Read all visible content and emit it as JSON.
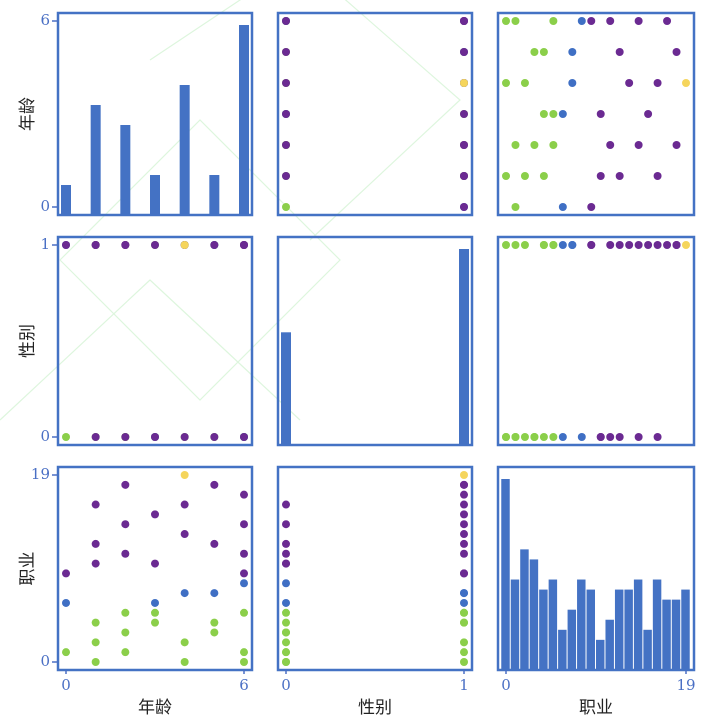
{
  "chart_data": {
    "type": "scatter_matrix",
    "variables": [
      {
        "name": "年龄",
        "lim": [
          0,
          6
        ],
        "ticks": [
          0,
          6
        ]
      },
      {
        "name": "性别",
        "lim": [
          0,
          1
        ],
        "ticks": [
          0,
          1
        ]
      },
      {
        "name": "职业",
        "lim": [
          0,
          19
        ],
        "ticks": [
          0,
          19
        ]
      }
    ],
    "series": [
      {
        "color": "#8bcf4a",
        "values": [
          [
            0,
            1,
            1,
            2,
            2,
            3,
            3,
            4,
            4,
            5,
            5,
            6,
            6,
            6,
            1,
            2
          ],
          [
            0,
            0,
            1,
            0,
            1,
            0,
            1,
            0,
            1,
            0,
            1,
            0,
            1,
            0,
            1,
            0
          ],
          [
            1,
            0,
            2,
            3,
            1,
            4,
            5,
            2,
            0,
            3,
            4,
            1,
            5,
            0,
            4,
            5
          ]
        ]
      },
      {
        "color": "#3f6fc4",
        "values": [
          [
            3,
            5,
            6,
            0,
            4
          ],
          [
            0,
            1,
            0,
            1,
            1
          ],
          [
            6,
            7,
            8,
            6,
            7
          ]
        ]
      },
      {
        "color": "#6b2a92",
        "values": [
          [
            0,
            1,
            1,
            2,
            2,
            3,
            4,
            4,
            5,
            6,
            6,
            6,
            1,
            3,
            5,
            6,
            2
          ],
          [
            1,
            0,
            1,
            1,
            0,
            1,
            0,
            1,
            1,
            1,
            0,
            1,
            1,
            0,
            0,
            1,
            1
          ],
          [
            9,
            10,
            12,
            11,
            14,
            15,
            16,
            13,
            18,
            9,
            11,
            17,
            16,
            10,
            12,
            14,
            18
          ]
        ]
      },
      {
        "color": "#f5d55c",
        "values": [
          [
            4
          ],
          [
            1
          ],
          [
            19
          ]
        ]
      }
    ],
    "histograms": [
      {
        "x": [
          0,
          1,
          2,
          3,
          4,
          5,
          6
        ],
        "counts": [
          3,
          11,
          9,
          4,
          13,
          4,
          19
        ]
      },
      {
        "x": [
          0,
          1
        ],
        "counts": [
          23,
          40
        ]
      },
      {
        "bins": [
          -0.5,
          0.5,
          1.5,
          2.5,
          3.5,
          4.5,
          5.5,
          6.5,
          7.5,
          8.5,
          9.5,
          10.5,
          11.5,
          12.5,
          13.5,
          14.5,
          15.5,
          16.5,
          17.5,
          18.5,
          19.5
        ],
        "counts": [
          19,
          9,
          12,
          11,
          8,
          9,
          4,
          6,
          9,
          8,
          3,
          5,
          8,
          8,
          9,
          4,
          9,
          7,
          7,
          8
        ]
      }
    ],
    "hist_color": "#4472c4",
    "frame_color": "#4472c4"
  }
}
